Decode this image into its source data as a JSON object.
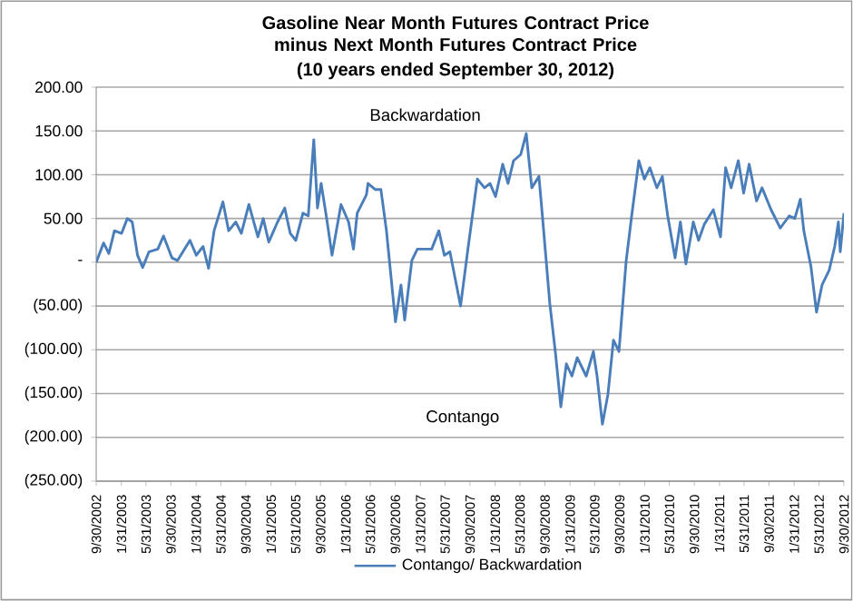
{
  "chart_data": {
    "type": "line",
    "title": "Gasoline Near Month Futures Contract Price minus Next Month Futures Contract Price",
    "subtitle": "(10 years ended September 30, 2012)",
    "annotations": [
      "Backwardation",
      "Contango"
    ],
    "x": [
      "2002-09-30",
      "2002-11-05",
      "2002-12-01",
      "2002-12-28",
      "2003-02-01",
      "2003-03-01",
      "2003-03-25",
      "2003-04-20",
      "2003-05-15",
      "2003-06-15",
      "2003-07-28",
      "2003-08-25",
      "2003-10-05",
      "2003-11-01",
      "2004-01-01",
      "2004-02-01",
      "2004-03-05",
      "2004-04-01",
      "2004-04-28",
      "2004-06-10",
      "2004-07-08",
      "2004-08-12",
      "2004-09-08",
      "2004-10-15",
      "2004-11-28",
      "2004-12-24",
      "2005-01-20",
      "2005-03-04",
      "2005-04-08",
      "2005-05-05",
      "2005-06-01",
      "2005-07-06",
      "2005-08-01",
      "2005-08-28",
      "2005-09-15",
      "2005-10-03",
      "2005-10-30",
      "2005-11-25",
      "2006-01-08",
      "2006-02-14",
      "2006-03-10",
      "2006-03-28",
      "2006-05-12",
      "2006-05-20",
      "2006-06-25",
      "2006-07-22",
      "2006-08-18",
      "2006-10-01",
      "2006-10-28",
      "2006-11-15",
      "2006-12-20",
      "2007-01-16",
      "2007-03-27",
      "2007-05-01",
      "2007-05-28",
      "2007-06-24",
      "2007-08-15",
      "2007-09-20",
      "2007-11-05",
      "2007-12-10",
      "2008-01-06",
      "2008-02-02",
      "2008-03-08",
      "2008-04-03",
      "2008-04-30",
      "2008-06-04",
      "2008-07-01",
      "2008-07-28",
      "2008-09-01",
      "2008-09-19",
      "2008-10-24",
      "2008-11-20",
      "2008-12-17",
      "2009-01-13",
      "2009-02-09",
      "2009-03-07",
      "2009-04-20",
      "2009-05-25",
      "2009-06-12",
      "2009-07-08",
      "2009-08-04",
      "2009-08-31",
      "2009-09-27",
      "2009-11-01",
      "2009-11-28",
      "2010-01-02",
      "2010-01-29",
      "2010-02-25",
      "2010-03-31",
      "2010-04-27",
      "2010-05-23",
      "2010-06-28",
      "2010-07-24",
      "2010-08-20",
      "2010-09-25",
      "2010-10-21",
      "2010-11-17",
      "2011-01-01",
      "2011-02-05",
      "2011-03-02",
      "2011-03-29",
      "2011-05-03",
      "2011-05-29",
      "2011-06-25",
      "2011-07-31",
      "2011-08-27",
      "2011-10-10",
      "2011-11-24",
      "2012-01-07",
      "2012-02-03",
      "2012-03-01",
      "2012-03-18",
      "2012-04-22",
      "2012-05-19",
      "2012-06-15",
      "2012-07-20",
      "2012-08-16",
      "2012-09-03",
      "2012-09-12",
      "2012-09-30"
    ],
    "series": [
      {
        "name": "Contango/ Backwardation",
        "color": "#4a7ebb",
        "values": [
          0,
          22,
          10,
          36,
          33,
          50,
          46,
          8,
          -6,
          12,
          15,
          30,
          5,
          2,
          25,
          8,
          18,
          -7,
          36,
          69,
          36,
          46,
          33,
          66,
          29,
          50,
          23,
          46,
          62,
          33,
          25,
          56,
          53,
          140,
          62,
          90,
          50,
          8,
          66,
          46,
          15,
          56,
          77,
          90,
          83,
          83,
          36,
          -68,
          -26,
          -66,
          2,
          15,
          15,
          36,
          8,
          12,
          -50,
          15,
          95,
          85,
          90,
          75,
          112,
          90,
          116,
          123,
          147,
          85,
          98,
          50,
          -47,
          -102,
          -165,
          -116,
          -130,
          -109,
          -130,
          -102,
          -130,
          -185,
          -151,
          -89,
          -102,
          1,
          53,
          116,
          95,
          108,
          85,
          98,
          53,
          5,
          46,
          -2,
          46,
          25,
          43,
          60,
          29,
          108,
          85,
          116,
          79,
          112,
          70,
          85,
          60,
          39,
          53,
          50,
          72,
          36,
          -5,
          -57,
          -26,
          -9,
          18,
          46,
          12,
          56
        ]
      }
    ],
    "xlim": [
      "2002-09-30",
      "2012-09-30"
    ],
    "xticks": [
      {
        "value": "2002-09-30",
        "label": "9/30/2002"
      },
      {
        "value": "2003-01-31",
        "label": "1/31/2003"
      },
      {
        "value": "2003-05-31",
        "label": "5/31/2003"
      },
      {
        "value": "2003-09-30",
        "label": "9/30/2003"
      },
      {
        "value": "2004-01-31",
        "label": "1/31/2004"
      },
      {
        "value": "2004-05-31",
        "label": "5/31/2004"
      },
      {
        "value": "2004-09-30",
        "label": "9/30/2004"
      },
      {
        "value": "2005-01-31",
        "label": "1/31/2005"
      },
      {
        "value": "2005-05-31",
        "label": "5/31/2005"
      },
      {
        "value": "2005-09-30",
        "label": "9/30/2005"
      },
      {
        "value": "2006-01-31",
        "label": "1/31/2006"
      },
      {
        "value": "2006-05-31",
        "label": "5/31/2006"
      },
      {
        "value": "2006-09-30",
        "label": "9/30/2006"
      },
      {
        "value": "2007-01-31",
        "label": "1/31/2007"
      },
      {
        "value": "2007-05-31",
        "label": "5/31/2007"
      },
      {
        "value": "2007-09-30",
        "label": "9/30/2007"
      },
      {
        "value": "2008-01-31",
        "label": "1/31/2008"
      },
      {
        "value": "2008-05-31",
        "label": "5/31/2008"
      },
      {
        "value": "2008-09-30",
        "label": "9/30/2008"
      },
      {
        "value": "2009-01-31",
        "label": "1/31/2009"
      },
      {
        "value": "2009-05-31",
        "label": "5/31/2009"
      },
      {
        "value": "2009-09-30",
        "label": "9/30/2009"
      },
      {
        "value": "2010-01-31",
        "label": "1/31/2010"
      },
      {
        "value": "2010-05-31",
        "label": "5/31/2010"
      },
      {
        "value": "2010-09-30",
        "label": "9/30/2010"
      },
      {
        "value": "2011-01-31",
        "label": "1/31/2011"
      },
      {
        "value": "2011-05-31",
        "label": "5/31/2011"
      },
      {
        "value": "2011-09-30",
        "label": "9/30/2011"
      },
      {
        "value": "2012-01-31",
        "label": "1/31/2012"
      },
      {
        "value": "2012-05-31",
        "label": "5/31/2012"
      },
      {
        "value": "2012-09-30",
        "label": "9/30/2012"
      }
    ],
    "ylim": [
      -250,
      200
    ],
    "yticks": [
      {
        "value": 200,
        "label": "200.00"
      },
      {
        "value": 150,
        "label": "150.00"
      },
      {
        "value": 100,
        "label": "100.00"
      },
      {
        "value": 50,
        "label": "50.00"
      },
      {
        "value": 0,
        "label": "-"
      },
      {
        "value": -50,
        "label": "(50.00)"
      },
      {
        "value": -100,
        "label": "(100.00)"
      },
      {
        "value": -150,
        "label": "(150.00)"
      },
      {
        "value": -200,
        "label": "(200.00)"
      },
      {
        "value": -250,
        "label": "(250.00)"
      }
    ],
    "grid": "y",
    "legend": "bottom",
    "marker": "none",
    "line_style": "solid"
  }
}
